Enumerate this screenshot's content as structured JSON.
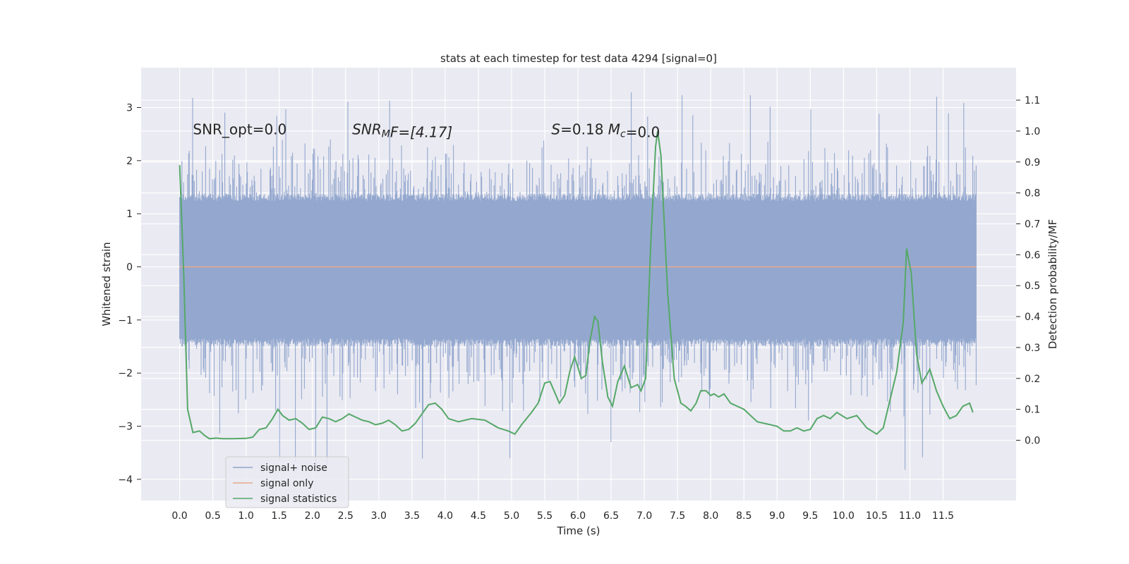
{
  "chart_data": {
    "type": "line",
    "title": "stats at each timestep for test data 4294 [signal=0]",
    "xlabel": "Time (s)",
    "ylabel": "Whitened strain",
    "ylabel_right": "Detection probability/MF",
    "xlim": [
      -0.58,
      12.6
    ],
    "ylim": [
      -4.4,
      3.75
    ],
    "ylim_right": [
      -0.195,
      1.205
    ],
    "x_ticks": [
      0.0,
      0.5,
      1.0,
      1.5,
      2.0,
      2.5,
      3.0,
      3.5,
      4.0,
      4.5,
      5.0,
      5.5,
      6.0,
      6.5,
      7.0,
      7.5,
      8.0,
      8.5,
      9.0,
      9.5,
      10.0,
      10.5,
      11.0,
      11.5
    ],
    "x_tick_labels": [
      "0.0",
      "0.5",
      "1.0",
      "1.5",
      "2.0",
      "2.5",
      "3.0",
      "3.5",
      "4.0",
      "4.5",
      "5.0",
      "5.5",
      "6.0",
      "6.5",
      "7.0",
      "7.5",
      "8.0",
      "8.5",
      "9.0",
      "9.5",
      "10.0",
      "10.5",
      "11.0",
      "11.5"
    ],
    "y_ticks": [
      -4,
      -3,
      -2,
      -1,
      0,
      1,
      2,
      3
    ],
    "y_tick_labels": [
      "−4",
      "−3",
      "−2",
      "−1",
      "0",
      "1",
      "2",
      "3"
    ],
    "y_ticks_right": [
      0.0,
      0.1,
      0.2,
      0.3,
      0.4,
      0.5,
      0.6,
      0.7,
      0.8,
      0.9,
      1.0,
      1.1
    ],
    "y_tick_labels_right": [
      "0.0",
      "0.1",
      "0.2",
      "0.3",
      "0.4",
      "0.5",
      "0.6",
      "0.7",
      "0.8",
      "0.9",
      "1.0",
      "1.1"
    ],
    "grid": true,
    "legend_position": "lower-left",
    "annotations": [
      {
        "id": "snr-opt",
        "text": "SNR_opt=0.0",
        "x": 0.2,
        "y": 2.6
      },
      {
        "id": "snr-mf",
        "parts": [
          [
            "SNR",
            ""
          ],
          [
            "M",
            "sub"
          ],
          [
            "F=[4.17]",
            ""
          ]
        ],
        "x": 2.6,
        "y": 2.6,
        "italic": true
      },
      {
        "id": "s-mc",
        "parts": [
          [
            "S",
            "i"
          ],
          [
            "=0.18   ",
            ""
          ],
          [
            "M",
            "i"
          ],
          [
            "c",
            "isub"
          ],
          [
            "=0.0",
            ""
          ]
        ],
        "x": 5.6,
        "y": 2.6
      }
    ],
    "noise_band": {
      "x_start": 0.0,
      "x_end": 12.0,
      "core_low": -1.5,
      "core_high": 1.38,
      "spike_max": 3.32,
      "spike_min": -3.85
    },
    "series": [
      {
        "name": "signal+ noise",
        "color": "#8fa4cc",
        "axis": "left",
        "style": "noise-band"
      },
      {
        "name": "signal only",
        "color": "#e8a98b",
        "axis": "left",
        "x": [
          0.0,
          12.0
        ],
        "y": [
          0.0,
          0.0
        ]
      },
      {
        "name": "signal statistics",
        "color": "#55a868",
        "axis": "right",
        "x": [
          0.0,
          0.06,
          0.12,
          0.2,
          0.3,
          0.38,
          0.45,
          0.55,
          0.65,
          0.8,
          1.0,
          1.1,
          1.2,
          1.3,
          1.4,
          1.48,
          1.55,
          1.65,
          1.75,
          1.85,
          1.95,
          2.05,
          2.15,
          2.25,
          2.35,
          2.45,
          2.55,
          2.65,
          2.75,
          2.85,
          2.95,
          3.05,
          3.15,
          3.25,
          3.35,
          3.45,
          3.55,
          3.65,
          3.75,
          3.85,
          3.95,
          4.05,
          4.2,
          4.4,
          4.6,
          4.8,
          4.95,
          5.05,
          5.15,
          5.3,
          5.4,
          5.5,
          5.58,
          5.65,
          5.72,
          5.8,
          5.88,
          5.95,
          6.05,
          6.12,
          6.18,
          6.25,
          6.3,
          6.37,
          6.45,
          6.52,
          6.6,
          6.7,
          6.8,
          6.9,
          6.95,
          7.02,
          7.1,
          7.17,
          7.2,
          7.25,
          7.35,
          7.45,
          7.55,
          7.62,
          7.7,
          7.78,
          7.85,
          7.93,
          8.0,
          8.05,
          8.12,
          8.2,
          8.3,
          8.5,
          8.7,
          8.9,
          9.0,
          9.1,
          9.2,
          9.3,
          9.4,
          9.5,
          9.6,
          9.7,
          9.8,
          9.9,
          10.05,
          10.2,
          10.35,
          10.5,
          10.6,
          10.7,
          10.8,
          10.9,
          10.95,
          11.02,
          11.1,
          11.18,
          11.25,
          11.3,
          11.4,
          11.5,
          11.6,
          11.7,
          11.8,
          11.9,
          11.95
        ],
        "y": [
          0.89,
          0.55,
          0.1,
          0.025,
          0.03,
          0.015,
          0.005,
          0.007,
          0.005,
          0.005,
          0.006,
          0.01,
          0.035,
          0.04,
          0.07,
          0.1,
          0.08,
          0.065,
          0.07,
          0.055,
          0.035,
          0.04,
          0.075,
          0.07,
          0.06,
          0.07,
          0.085,
          0.075,
          0.065,
          0.06,
          0.05,
          0.055,
          0.065,
          0.05,
          0.03,
          0.035,
          0.055,
          0.085,
          0.115,
          0.12,
          0.1,
          0.07,
          0.06,
          0.07,
          0.065,
          0.04,
          0.03,
          0.02,
          0.05,
          0.09,
          0.12,
          0.185,
          0.19,
          0.155,
          0.12,
          0.145,
          0.225,
          0.27,
          0.2,
          0.21,
          0.32,
          0.4,
          0.385,
          0.25,
          0.14,
          0.11,
          0.19,
          0.24,
          0.17,
          0.18,
          0.16,
          0.2,
          0.65,
          0.95,
          1.0,
          0.92,
          0.48,
          0.2,
          0.12,
          0.11,
          0.095,
          0.12,
          0.16,
          0.16,
          0.145,
          0.15,
          0.14,
          0.15,
          0.12,
          0.1,
          0.06,
          0.05,
          0.045,
          0.03,
          0.03,
          0.04,
          0.03,
          0.035,
          0.07,
          0.08,
          0.07,
          0.09,
          0.07,
          0.08,
          0.04,
          0.02,
          0.04,
          0.13,
          0.22,
          0.38,
          0.62,
          0.54,
          0.28,
          0.185,
          0.21,
          0.23,
          0.16,
          0.11,
          0.07,
          0.08,
          0.11,
          0.12,
          0.09
        ]
      }
    ]
  }
}
